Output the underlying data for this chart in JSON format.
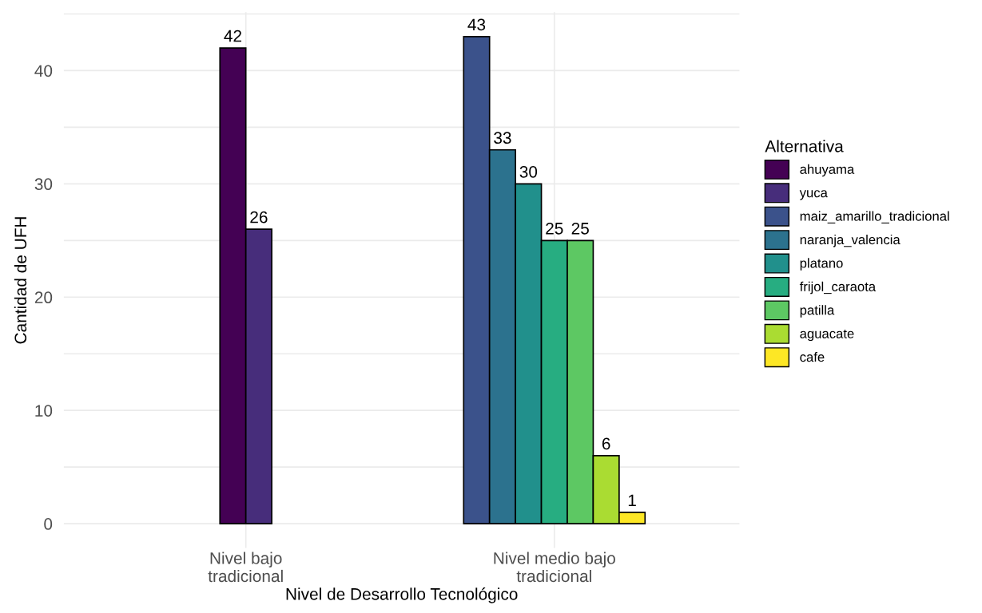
{
  "chart_data": {
    "type": "bar",
    "xlabel": "Nivel de Desarrollo Tecnológico",
    "ylabel": "Cantidad de UFH",
    "legend_title": "Alternativa",
    "legend": "right",
    "categories": [
      "Nivel bajo\ntradicional",
      "Nivel medio bajo\ntradicional"
    ],
    "series": [
      {
        "name": "ahuyama",
        "color": "#440154",
        "values": [
          42,
          null
        ]
      },
      {
        "name": "yuca",
        "color": "#472d7b",
        "values": [
          26,
          null
        ]
      },
      {
        "name": "maiz_amarillo_tradicional",
        "color": "#3b528b",
        "values": [
          null,
          43
        ]
      },
      {
        "name": "naranja_valencia",
        "color": "#2c728e",
        "values": [
          null,
          33
        ]
      },
      {
        "name": "platano",
        "color": "#21908c",
        "values": [
          null,
          30
        ]
      },
      {
        "name": "frijol_caraota",
        "color": "#27ad81",
        "values": [
          null,
          25
        ]
      },
      {
        "name": "patilla",
        "color": "#5dc863",
        "values": [
          null,
          25
        ]
      },
      {
        "name": "aguacate",
        "color": "#aadc32",
        "values": [
          null,
          6
        ]
      },
      {
        "name": "cafe",
        "color": "#fde725",
        "values": [
          null,
          1
        ]
      }
    ],
    "ylim": [
      -2.15,
      45.15
    ],
    "yticks": [
      0,
      {
        "value": 5,
        "label": null
      },
      10,
      {
        "value": 15,
        "label": null
      },
      20,
      {
        "value": 25,
        "label": null
      },
      30,
      {
        "value": 35,
        "label": null
      },
      40,
      {
        "value": 45,
        "label": null
      }
    ],
    "grid": true,
    "data_labels": true
  }
}
